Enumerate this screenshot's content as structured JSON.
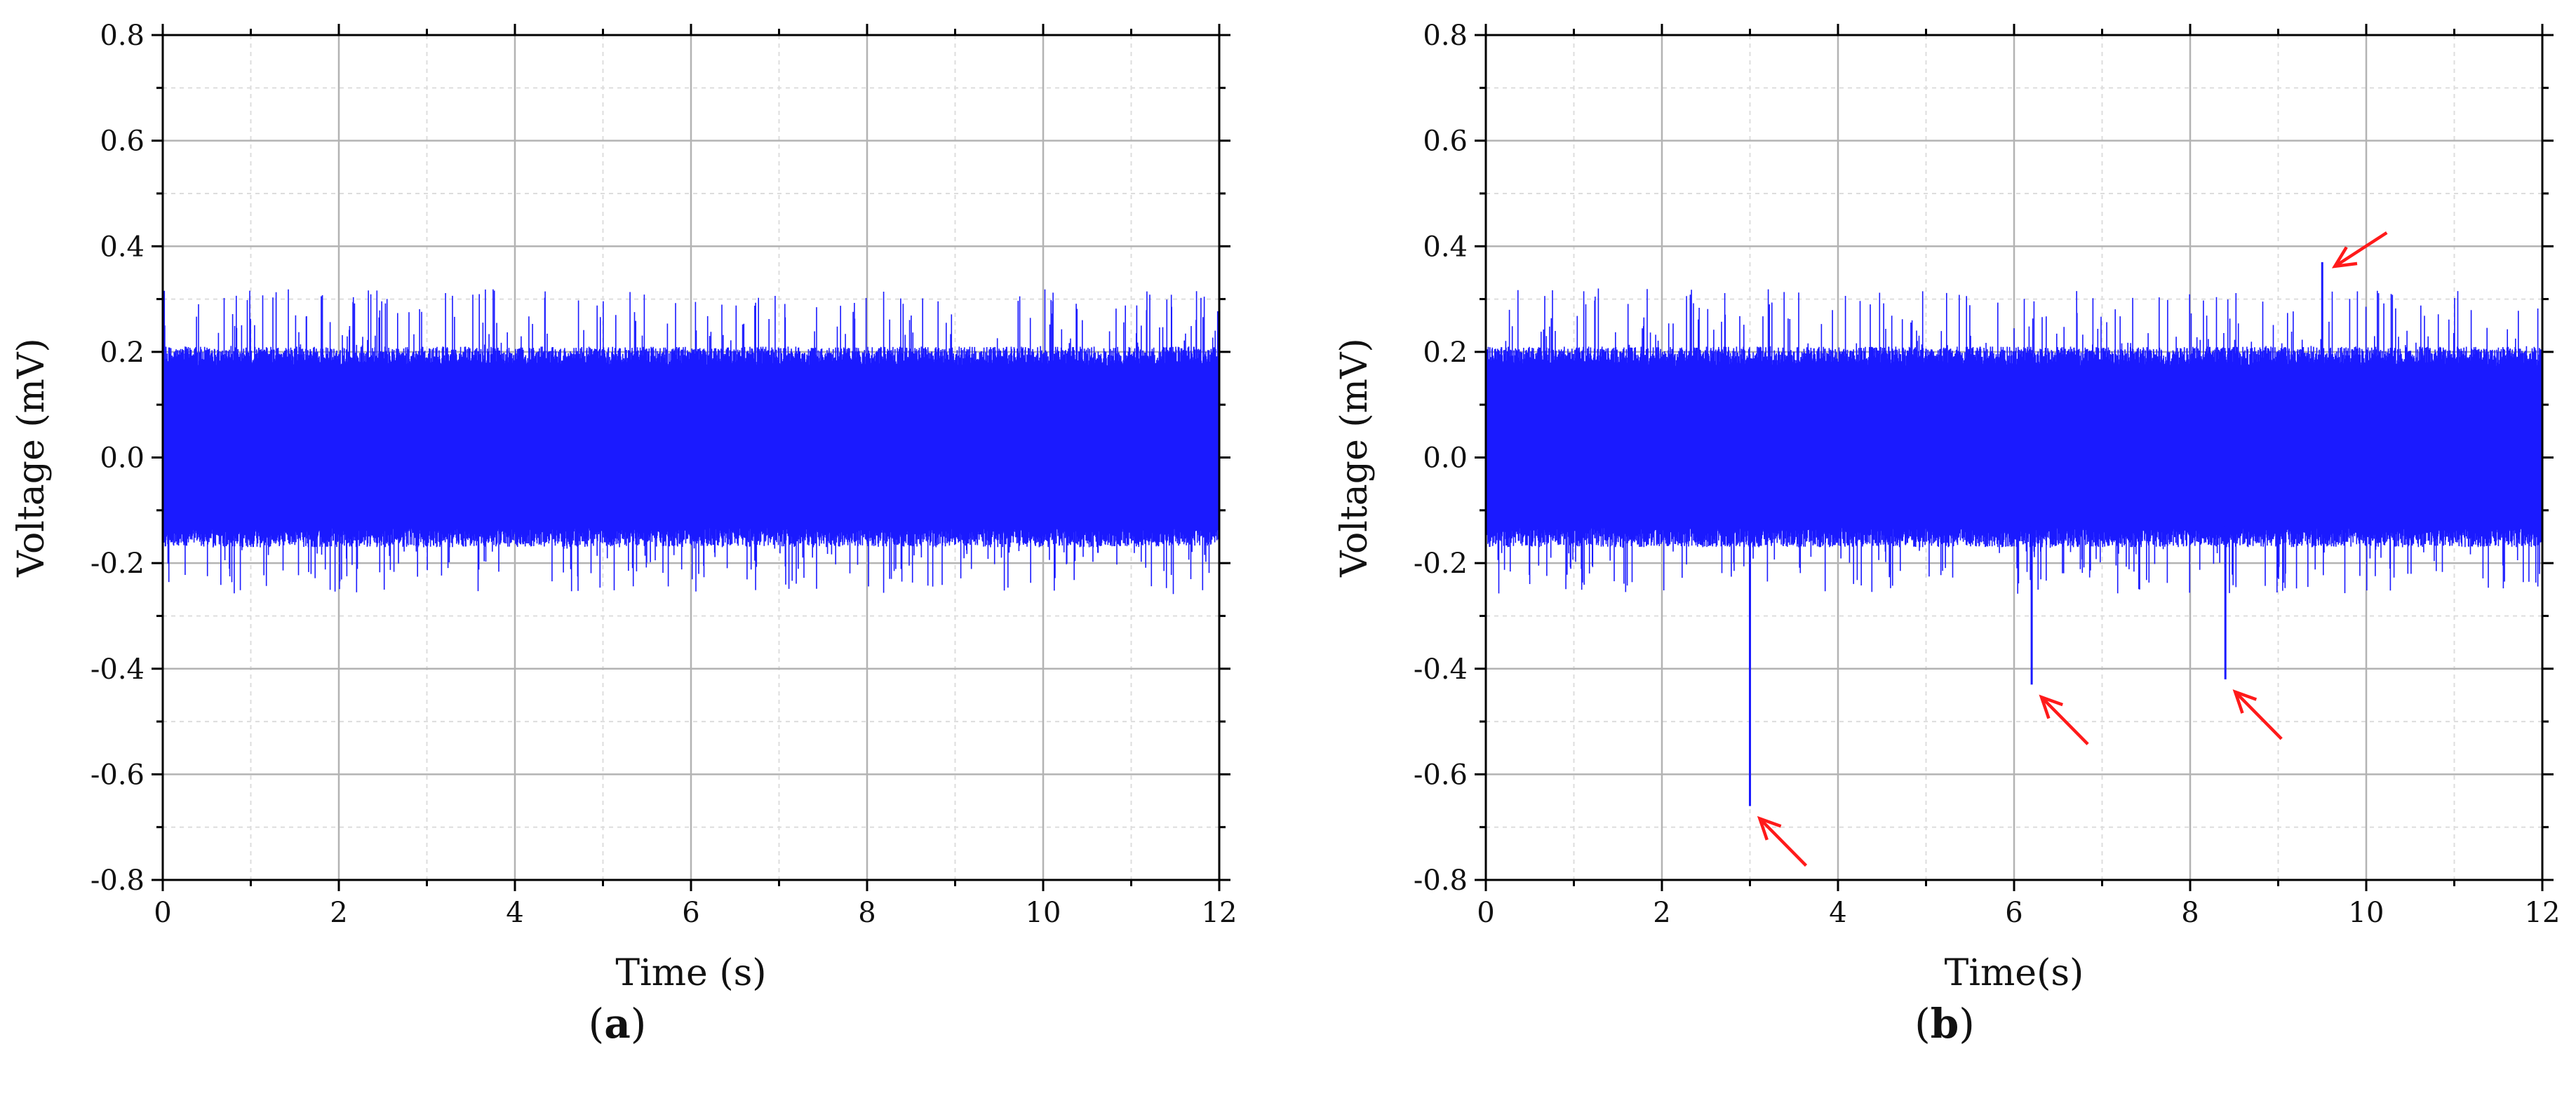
{
  "colors": {
    "signal": "#1a1aff",
    "arrow": "#ff1a1a",
    "grid_major": "#b3b3b3",
    "grid_minor": "#dddddd"
  },
  "chart_data": [
    {
      "type": "line",
      "panel_label": "a",
      "xlabel": "Time (s)",
      "ylabel": "Voltage (mV)",
      "xlim": [
        0,
        12
      ],
      "ylim": [
        -0.8,
        0.8
      ],
      "x_ticks": [
        "0",
        "2",
        "4",
        "6",
        "8",
        "10",
        "12"
      ],
      "y_ticks": [
        "0.8",
        "0.6",
        "0.4",
        "0.2",
        "0.0",
        "-0.2",
        "-0.4",
        "-0.6",
        "-0.8"
      ],
      "grid": true,
      "series": [
        {
          "band_lower": -0.15,
          "band_upper": 0.19,
          "peak_max": 0.32,
          "peak_min": -0.26,
          "spikes": []
        }
      ],
      "annotations": []
    },
    {
      "type": "line",
      "panel_label": "b",
      "xlabel": "Time(s)",
      "ylabel": "Voltage (mV)",
      "xlim": [
        0,
        12
      ],
      "ylim": [
        -0.8,
        0.8
      ],
      "x_ticks": [
        "0",
        "2",
        "4",
        "6",
        "8",
        "10",
        "12"
      ],
      "y_ticks": [
        "0.8",
        "0.6",
        "0.4",
        "0.2",
        "0.0",
        "-0.2",
        "-0.4",
        "-0.6",
        "-0.8"
      ],
      "grid": true,
      "series": [
        {
          "band_lower": -0.15,
          "band_upper": 0.19,
          "peak_max": 0.32,
          "peak_min": -0.26,
          "spikes": [
            {
              "x": 3.0,
              "y": -0.66
            },
            {
              "x": 6.2,
              "y": -0.43
            },
            {
              "x": 8.4,
              "y": -0.42
            },
            {
              "x": 9.5,
              "y": 0.37
            }
          ]
        }
      ],
      "annotations": [
        {
          "type": "arrow",
          "target_x": 3.0,
          "target_y": -0.66,
          "from": "bottom-right"
        },
        {
          "type": "arrow",
          "target_x": 6.2,
          "target_y": -0.43,
          "from": "bottom-right"
        },
        {
          "type": "arrow",
          "target_x": 8.4,
          "target_y": -0.42,
          "from": "bottom-right"
        },
        {
          "type": "arrow",
          "target_x": 9.5,
          "target_y": 0.37,
          "from": "top-right"
        }
      ]
    }
  ]
}
